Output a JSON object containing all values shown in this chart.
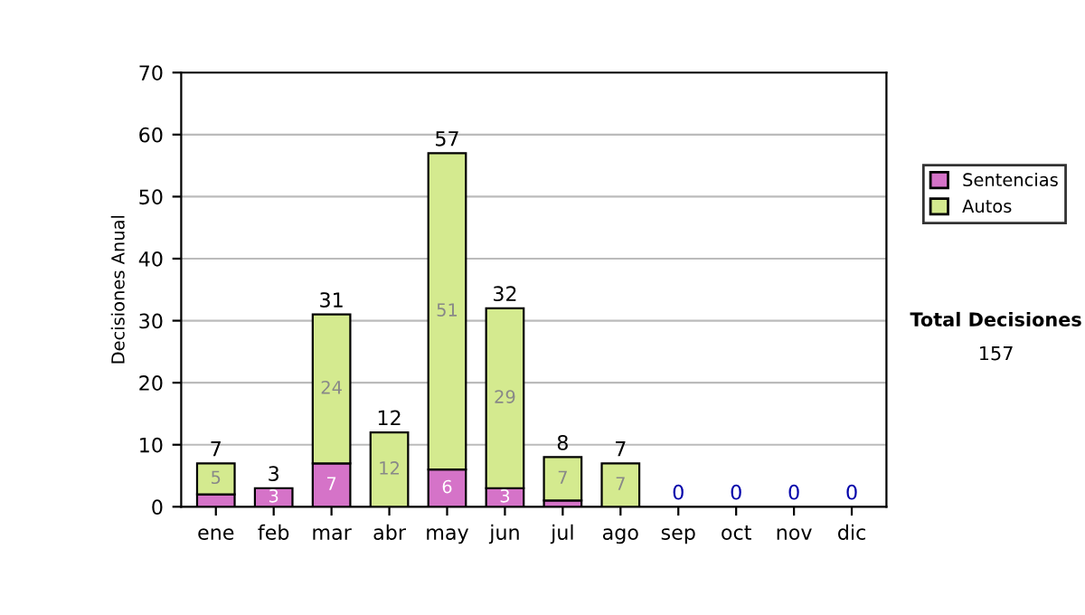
{
  "chart_data": {
    "type": "bar",
    "stacked": true,
    "ylabel": "Decisiones Anual",
    "categories": [
      "ene",
      "feb",
      "mar",
      "abr",
      "may",
      "jun",
      "jul",
      "ago",
      "sep",
      "oct",
      "nov",
      "dic"
    ],
    "series": [
      {
        "name": "Sentencias",
        "color": "#d573c8",
        "values": [
          2,
          3,
          7,
          0,
          6,
          3,
          1,
          0,
          0,
          0,
          0,
          0
        ],
        "value_labels": [
          null,
          "3",
          "7",
          null,
          "6",
          "3",
          null,
          null,
          null,
          null,
          null,
          null
        ]
      },
      {
        "name": "Autos",
        "color": "#d4ea8f",
        "values": [
          5,
          0,
          24,
          12,
          51,
          29,
          7,
          7,
          0,
          0,
          0,
          0
        ],
        "value_labels": [
          "5",
          null,
          "24",
          "12",
          "51",
          "29",
          "7",
          "7",
          null,
          null,
          null,
          null
        ]
      }
    ],
    "totals": [
      "7",
      "3",
      "31",
      "12",
      "57",
      "32",
      "8",
      "7",
      "0",
      "0",
      "0",
      "0"
    ],
    "ylim": [
      0,
      70
    ],
    "yticks": [
      0,
      10,
      20,
      30,
      40,
      50,
      60,
      70
    ],
    "grid": "y",
    "legend": "right",
    "annotations": [
      "Total Decisiones",
      "157"
    ]
  }
}
